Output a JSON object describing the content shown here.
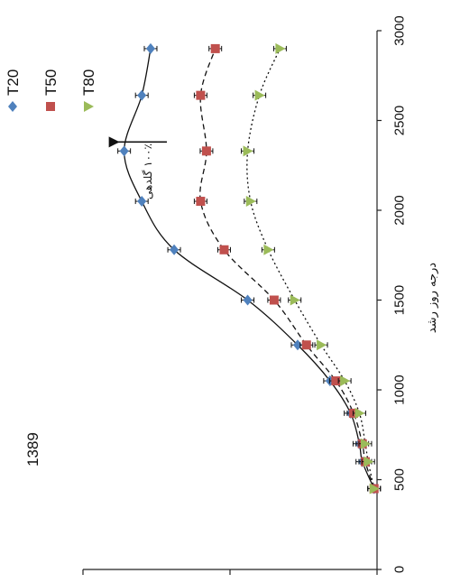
{
  "chart_data": {
    "type": "scatter",
    "year_label": "1389",
    "xlabel": "درجه روز رشد",
    "ylabel": "",
    "xlim": [
      0,
      3000
    ],
    "ylim": [
      0,
      100
    ],
    "x_ticks": [
      "0",
      "500",
      "1000",
      "1500",
      "2000",
      "2500",
      "3000"
    ],
    "series": [
      {
        "name": "T20",
        "color": "#4f81bd",
        "marker": "diamond",
        "fit_line": "solid",
        "x": [
          450,
          600,
          700,
          870,
          1050,
          1250,
          1500,
          1780,
          2050,
          2330,
          2640,
          2900
        ],
        "y": [
          1,
          5,
          6,
          9,
          16,
          27,
          44,
          69,
          80,
          86,
          80,
          77
        ]
      },
      {
        "name": "T50",
        "color": "#c0504d",
        "marker": "square",
        "fit_line": "dashed",
        "x": [
          450,
          600,
          700,
          870,
          1050,
          1250,
          1500,
          1780,
          2050,
          2330,
          2640,
          2900
        ],
        "y": [
          1,
          4,
          5,
          8,
          14,
          24,
          35,
          52,
          60,
          58,
          60,
          55
        ]
      },
      {
        "name": "T80",
        "color": "#9bbb59",
        "marker": "triangle",
        "fit_line": "dotted",
        "x": [
          450,
          600,
          700,
          870,
          1050,
          1250,
          1500,
          1780,
          2050,
          2330,
          2640,
          2900
        ],
        "y": [
          1,
          3,
          4,
          6,
          11,
          19,
          28,
          37,
          43,
          44,
          40,
          33
        ]
      }
    ],
    "annotation": {
      "text": "۱۰۰٪ گلدهی",
      "target_x": 2350,
      "target_y": 86
    }
  }
}
